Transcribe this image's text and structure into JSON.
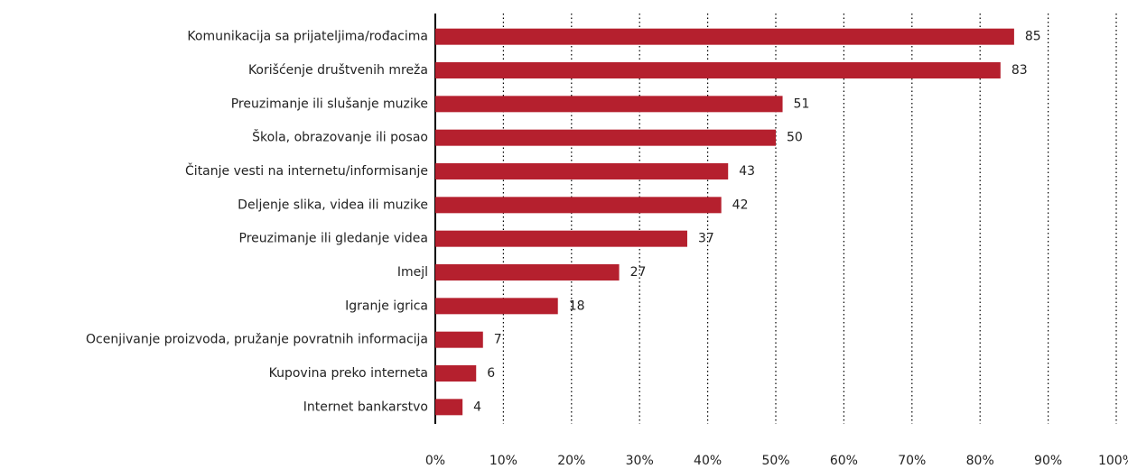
{
  "chart_data": {
    "type": "barh",
    "categories": [
      "Komunikacija sa prijateljima/rođacima",
      "Korišćenje društvenih mreža",
      "Preuzimanje ili slušanje muzike",
      "Škola, obrazovanje ili posao",
      "Čitanje vesti na internetu/informisanje",
      "Deljenje slika, videa ili muzike",
      "Preuzimanje ili gledanje videa",
      "Imejl",
      "Igranje igrica",
      "Ocenjivanje proizvoda, pružanje povratnih informacija",
      "Kupovina preko interneta",
      "Internet bankarstvo"
    ],
    "values": [
      85,
      83,
      51,
      50,
      43,
      42,
      37,
      27,
      18,
      7,
      6,
      4
    ],
    "color": "#b5202e",
    "xlim": [
      0,
      100
    ],
    "xticks": [
      {
        "value": 0,
        "label": "0%"
      },
      {
        "value": 10,
        "label": "10%"
      },
      {
        "value": 20,
        "label": "20%"
      },
      {
        "value": 30,
        "label": "30%"
      },
      {
        "value": 40,
        "label": "40%"
      },
      {
        "value": 50,
        "label": "50%"
      },
      {
        "value": 60,
        "label": "60%"
      },
      {
        "value": 70,
        "label": "70%"
      },
      {
        "value": 80,
        "label": "80%"
      },
      {
        "value": 90,
        "label": "90%"
      },
      {
        "value": 100,
        "label": "100%"
      }
    ],
    "grid": true
  }
}
